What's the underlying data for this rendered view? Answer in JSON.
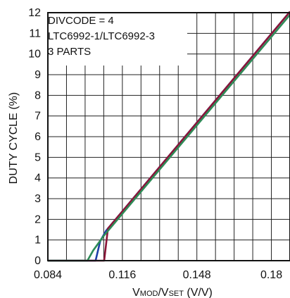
{
  "chart_data": {
    "type": "line",
    "title": "",
    "xlabel": {
      "prefix": "V",
      "sub1": "MOD",
      "mid": "/V",
      "sub2": "SET",
      "suffix": " (V/V)"
    },
    "ylabel": "DUTY CYCLE (%)",
    "xlim": [
      0.084,
      0.188
    ],
    "ylim": [
      0,
      12
    ],
    "x_ticks": [
      0.084,
      0.116,
      0.148,
      0.18
    ],
    "x_tick_labels": [
      "0.084",
      "0.116",
      "0.148",
      "0.18"
    ],
    "y_ticks": [
      0,
      1,
      2,
      3,
      4,
      5,
      6,
      7,
      8,
      9,
      10,
      11,
      12
    ],
    "y_tick_labels": [
      "0",
      "1",
      "2",
      "3",
      "4",
      "5",
      "6",
      "7",
      "8",
      "9",
      "10",
      "11",
      "12"
    ],
    "grid": true,
    "legend": null,
    "annotations": [
      "DIVCODE = 4",
      "LTC6992-1/LTC6992-3",
      "3 PARTS"
    ],
    "series": [
      {
        "color": "#1e3fa8",
        "x": [
          0.084,
          0.1045,
          0.1065,
          0.109,
          0.188
        ],
        "y": [
          0,
          0,
          0.95,
          1.45,
          12.05
        ]
      },
      {
        "color": "#8a1538",
        "x": [
          0.084,
          0.1048,
          0.1082,
          0.1098,
          0.188
        ],
        "y": [
          0,
          0,
          0,
          1.55,
          12.05
        ]
      },
      {
        "color": "#2e8b57",
        "x": [
          0.084,
          0.101,
          0.1035,
          0.108,
          0.188
        ],
        "y": [
          0,
          0,
          0.5,
          1.2,
          11.9
        ]
      }
    ]
  }
}
